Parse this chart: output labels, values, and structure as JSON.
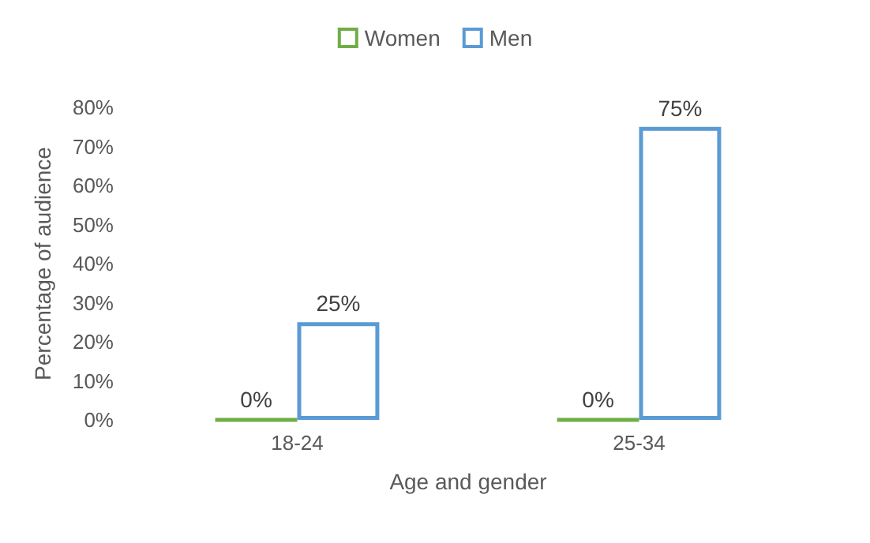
{
  "chart_data": {
    "type": "bar",
    "xlabel": "Age and gender",
    "ylabel": "Percentage of audience",
    "categories": [
      "18-24",
      "25-34"
    ],
    "series": [
      {
        "name": "Women",
        "color": "#70ad47",
        "values": [
          0,
          0
        ],
        "value_labels": [
          "0%",
          "0%"
        ]
      },
      {
        "name": "Men",
        "color": "#5b9bd5",
        "values": [
          25,
          75
        ],
        "value_labels": [
          "25%",
          "75%"
        ]
      }
    ],
    "ylim": [
      0,
      80
    ],
    "yticks": [
      {
        "value": 0,
        "label": "0%"
      },
      {
        "value": 10,
        "label": "10%"
      },
      {
        "value": 20,
        "label": "20%"
      },
      {
        "value": 30,
        "label": "30%"
      },
      {
        "value": 40,
        "label": "40%"
      },
      {
        "value": 50,
        "label": "50%"
      },
      {
        "value": 60,
        "label": "60%"
      },
      {
        "value": 70,
        "label": "70%"
      },
      {
        "value": 80,
        "label": "80%"
      }
    ],
    "grid": false,
    "legend": "top"
  }
}
